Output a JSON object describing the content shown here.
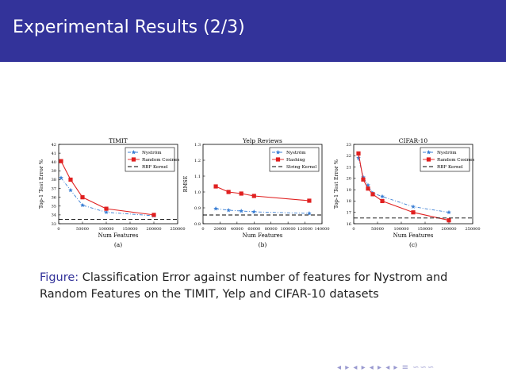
{
  "slide": {
    "title": "Experimental Results (2/3)",
    "caption_label": "Figure:",
    "caption_text": "Classification Error against number of features for Nystrom and Random Features on the TIMIT, Yelp and CIFAR-10 datasets",
    "nav_symbols": "◂ ▸ ◂ ▸ ◂ ▸ ◂ ▸ ≡ ∽∽∽"
  },
  "colors": {
    "title_bar": "#33339a",
    "series_blue": "#3b7fd4",
    "series_red": "#e02020",
    "baseline": "#000000"
  },
  "chart_data": [
    {
      "type": "line",
      "title": "TIMIT",
      "panel_label": "(a)",
      "xlabel": "Num Features",
      "ylabel": "Top-1 Test Error %",
      "xlim": [
        0,
        250000
      ],
      "ylim": [
        33,
        42
      ],
      "xticks": [
        "0",
        "50000",
        "100000",
        "150000",
        "200000",
        "250000"
      ],
      "yticks": [
        "33",
        "34",
        "35",
        "36",
        "37",
        "38",
        "39",
        "40",
        "41",
        "42"
      ],
      "legend_position": "top-right",
      "series": [
        {
          "name": "Nyström",
          "style": "dash-dot",
          "color": "#3b7fd4",
          "marker": "star",
          "x": [
            5000,
            25000,
            50000,
            100000,
            200000
          ],
          "values": [
            38.2,
            36.8,
            35.1,
            34.3,
            33.9
          ]
        },
        {
          "name": "Random Cosines",
          "style": "solid",
          "color": "#e02020",
          "marker": "square",
          "x": [
            5000,
            25000,
            50000,
            100000,
            200000
          ],
          "values": [
            40.1,
            38.0,
            36.0,
            34.7,
            34.0
          ]
        },
        {
          "name": "RBF Kernel",
          "style": "dashed",
          "color": "#000000",
          "marker": "none",
          "x": [
            0,
            250000
          ],
          "values": [
            33.5,
            33.5
          ]
        }
      ]
    },
    {
      "type": "line",
      "title": "Yelp Reviews",
      "panel_label": "(b)",
      "xlabel": "Num Features",
      "ylabel": "RMSE",
      "xlim": [
        0,
        140000
      ],
      "ylim": [
        0.8,
        1.3
      ],
      "xticks": [
        "0",
        "20000",
        "40000",
        "60000",
        "80000",
        "100000",
        "120000",
        "140000"
      ],
      "yticks": [
        "0.8",
        "0.9",
        "1.0",
        "1.1",
        "1.2",
        "1.3"
      ],
      "legend_position": "top-right",
      "series": [
        {
          "name": "Nyström",
          "style": "dash-dot",
          "color": "#3b7fd4",
          "marker": "star",
          "x": [
            15000,
            30000,
            45000,
            60000,
            125000
          ],
          "values": [
            0.895,
            0.885,
            0.88,
            0.875,
            0.865
          ]
        },
        {
          "name": "Hashing",
          "style": "solid",
          "color": "#e02020",
          "marker": "square",
          "x": [
            15000,
            30000,
            45000,
            60000,
            125000
          ],
          "values": [
            1.035,
            1.0,
            0.99,
            0.975,
            0.945
          ]
        },
        {
          "name": "String Kernel",
          "style": "dashed",
          "color": "#000000",
          "marker": "none",
          "x": [
            0,
            140000
          ],
          "values": [
            0.855,
            0.855
          ]
        }
      ]
    },
    {
      "type": "line",
      "title": "CIFAR-10",
      "panel_label": "(c)",
      "xlabel": "Num Features",
      "ylabel": "Top-1 Test Error %",
      "xlim": [
        0,
        250000
      ],
      "ylim": [
        16,
        23
      ],
      "xticks": [
        "0",
        "50000",
        "100000",
        "150000",
        "200000",
        "250000"
      ],
      "yticks": [
        "16",
        "17",
        "18",
        "19",
        "20",
        "21",
        "22",
        "23"
      ],
      "legend_position": "top-right",
      "series": [
        {
          "name": "Nyström",
          "style": "dash-dot",
          "color": "#3b7fd4",
          "marker": "star",
          "x": [
            10000,
            20000,
            30000,
            40000,
            60000,
            125000,
            200000
          ],
          "values": [
            21.8,
            20.1,
            19.4,
            18.7,
            18.4,
            17.5,
            17.0
          ]
        },
        {
          "name": "Random Cosines",
          "style": "solid",
          "color": "#e02020",
          "marker": "square",
          "x": [
            10000,
            20000,
            30000,
            40000,
            60000,
            125000,
            200000
          ],
          "values": [
            22.2,
            19.9,
            19.1,
            18.6,
            18.0,
            17.0,
            16.3
          ]
        },
        {
          "name": "RBF Kernel",
          "style": "dashed",
          "color": "#000000",
          "marker": "none",
          "x": [
            0,
            250000
          ],
          "values": [
            16.5,
            16.5
          ]
        }
      ]
    }
  ]
}
